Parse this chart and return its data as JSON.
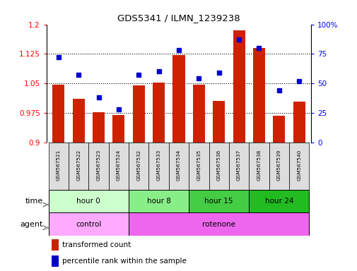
{
  "title": "GDS5341 / ILMN_1239238",
  "samples": [
    "GSM567521",
    "GSM567522",
    "GSM567523",
    "GSM567524",
    "GSM567532",
    "GSM567533",
    "GSM567534",
    "GSM567535",
    "GSM567536",
    "GSM567537",
    "GSM567538",
    "GSM567539",
    "GSM567540"
  ],
  "bar_values": [
    1.047,
    1.01,
    0.977,
    0.97,
    1.045,
    1.052,
    1.122,
    1.046,
    1.005,
    1.185,
    1.14,
    0.968,
    1.003
  ],
  "dot_values": [
    72,
    57,
    38,
    28,
    57,
    60,
    78,
    54,
    59,
    87,
    80,
    44,
    52
  ],
  "ylim_left": [
    0.9,
    1.2
  ],
  "ylim_right": [
    0,
    100
  ],
  "yticks_left": [
    0.9,
    0.975,
    1.05,
    1.125,
    1.2
  ],
  "yticks_right": [
    0,
    25,
    50,
    75,
    100
  ],
  "ytick_labels_left": [
    "0.9",
    "0.975",
    "1.05",
    "1.125",
    "1.2"
  ],
  "ytick_labels_right": [
    "0",
    "25",
    "50",
    "75",
    "100%"
  ],
  "hlines": [
    0.975,
    1.05,
    1.125
  ],
  "bar_color": "#cc2200",
  "dot_color": "#0000cc",
  "time_groups": [
    {
      "label": "hour 0",
      "start": 0,
      "end": 4,
      "color": "#ccffcc"
    },
    {
      "label": "hour 8",
      "start": 4,
      "end": 7,
      "color": "#88ee88"
    },
    {
      "label": "hour 15",
      "start": 7,
      "end": 10,
      "color": "#44cc44"
    },
    {
      "label": "hour 24",
      "start": 10,
      "end": 13,
      "color": "#22bb22"
    }
  ],
  "agent_groups": [
    {
      "label": "control",
      "start": 0,
      "end": 4,
      "color": "#ffaaff"
    },
    {
      "label": "rotenone",
      "start": 4,
      "end": 13,
      "color": "#ee66ee"
    }
  ],
  "legend_bar_label": "transformed count",
  "legend_dot_label": "percentile rank within the sample",
  "time_label": "time",
  "agent_label": "agent",
  "bar_base": 0.9,
  "sample_bg_color": "#dddddd"
}
